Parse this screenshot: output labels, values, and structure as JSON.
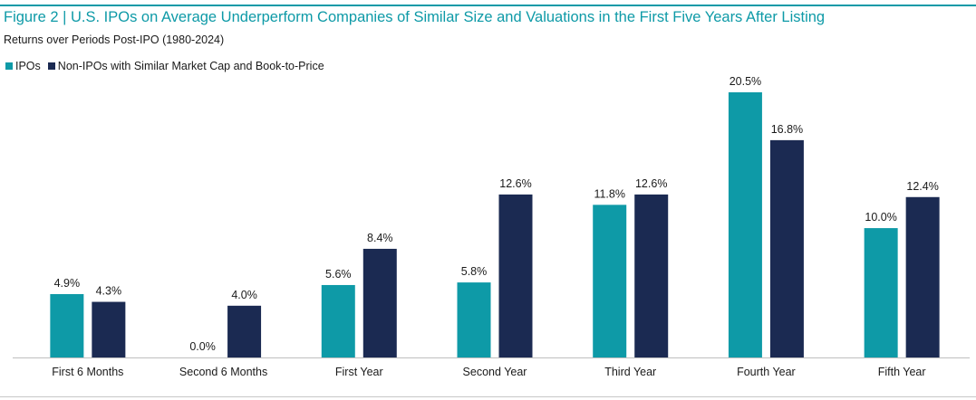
{
  "header": {
    "title": "Figure 2 | U.S. IPOs on Average Underperform Companies of Similar Size and Valuations in the First Five Years After Listing",
    "subtitle": "Returns over Periods Post-IPO (1980-2024)"
  },
  "colors": {
    "ipo": "#0e9aa7",
    "non_ipo": "#1b2a52",
    "accent": "#0e9aa7"
  },
  "chart_data": {
    "type": "bar",
    "categories": [
      "First 6 Months",
      "Second 6 Months",
      "First Year",
      "Second Year",
      "Third Year",
      "Fourth Year",
      "Fifth Year"
    ],
    "series": [
      {
        "name": "IPOs",
        "values": [
          4.9,
          0.0,
          5.6,
          5.8,
          11.8,
          20.5,
          10.0
        ],
        "labels": [
          "4.9%",
          "0.0%",
          "5.6%",
          "5.8%",
          "11.8%",
          "20.5%",
          "10.0%"
        ]
      },
      {
        "name": "Non-IPOs with Similar Market Cap and Book-to-Price",
        "values": [
          4.3,
          4.0,
          8.4,
          12.6,
          12.6,
          16.8,
          12.4
        ],
        "labels": [
          "4.3%",
          "4.0%",
          "8.4%",
          "12.6%",
          "12.6%",
          "16.8%",
          "12.4%"
        ]
      }
    ],
    "title": "Figure 2 | U.S. IPOs on Average Underperform Companies of Similar Size and Valuations in the First Five Years After Listing",
    "subtitle": "Returns over Periods Post-IPO (1980-2024)",
    "ylim": [
      0,
      20.5
    ],
    "grid": false,
    "legend": "top-left"
  }
}
